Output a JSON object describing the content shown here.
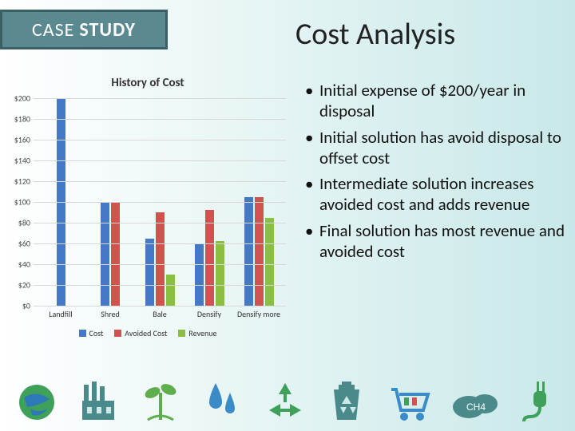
{
  "badge": {
    "word1": "CASE",
    "word2": "STUDY"
  },
  "title": "Cost Analysis",
  "chart": {
    "title": "History of Cost",
    "ylim": [
      0,
      200
    ],
    "yticks": [
      0,
      20,
      40,
      60,
      80,
      100,
      120,
      140,
      160,
      180,
      200
    ],
    "ytick_labels": [
      "$0",
      "$20",
      "$40",
      "$60",
      "$80",
      "$100",
      "$120",
      "$140",
      "$160",
      "$180",
      "$200"
    ],
    "categories": [
      "Landfill",
      "Shred",
      "Bale",
      "Densify",
      "Densify more"
    ],
    "series": [
      {
        "name": "Cost",
        "color": "#4678c8",
        "values": [
          200,
          100,
          65,
          60,
          105
        ]
      },
      {
        "name": "Avoided Cost",
        "color": "#d0534f",
        "values": [
          0,
          100,
          90,
          92,
          105
        ]
      },
      {
        "name": "Revenue",
        "color": "#8bbf42",
        "values": [
          0,
          0,
          30,
          62,
          85
        ]
      }
    ],
    "grid_color": "#d8d8d8",
    "label_fontsize": 10,
    "title_fontsize": 15
  },
  "bullets": [
    "Initial expense of $200/year in disposal",
    "Initial solution has avoid disposal to offset cost",
    "Intermediate solution increases avoided cost and adds revenue",
    "Final solution has most revenue and avoided cost"
  ],
  "icons": {
    "globe": {
      "primary": "#3fa05a",
      "accent": "#2f78b8"
    },
    "factory": {
      "primary": "#4a8a8a"
    },
    "plant": {
      "primary": "#5fae4c"
    },
    "drops": {
      "primary": "#3a8bc8"
    },
    "recycle": {
      "primary": "#3fa05a"
    },
    "bin": {
      "primary": "#4a8a8a"
    },
    "cart": {
      "primary": "#3a8bc8"
    },
    "ch4": {
      "primary": "#4a8a8a",
      "label": "CH4"
    },
    "plug": {
      "primary": "#3fa05a"
    }
  }
}
